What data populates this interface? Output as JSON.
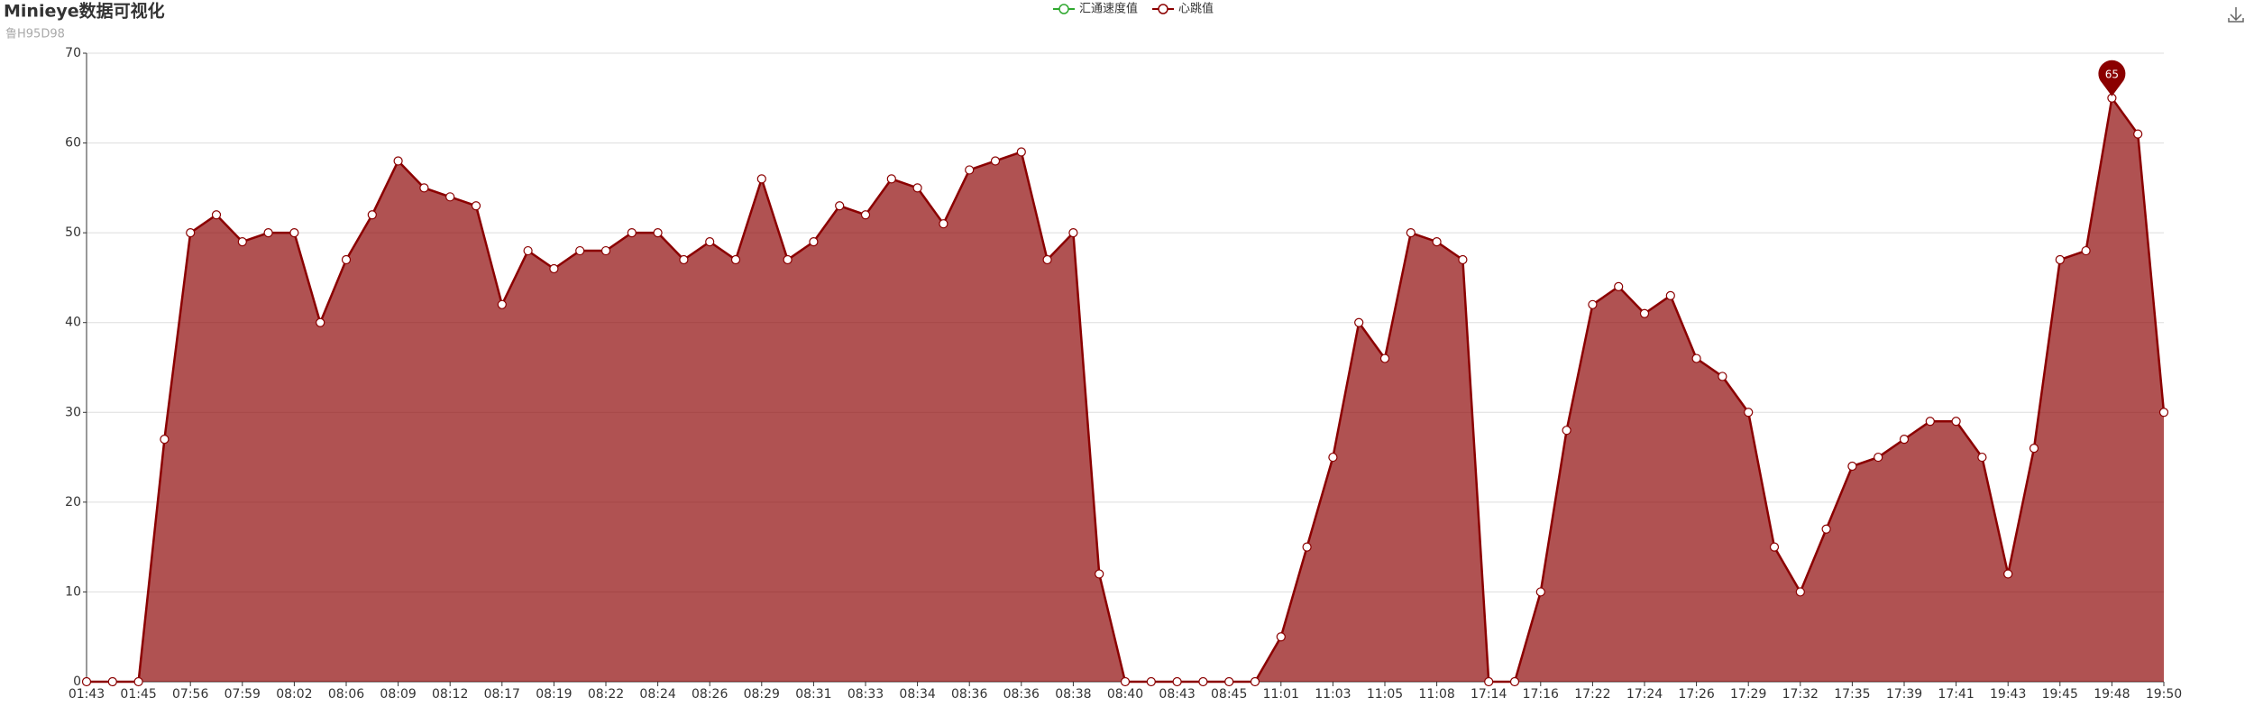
{
  "chart_data": {
    "type": "line",
    "title": "Minieye数据可视化",
    "subtitle": "鲁H95D98",
    "legend": [
      {
        "name": "汇通速度值",
        "color": "#2fa82f"
      },
      {
        "name": "心跳值",
        "color": "#8b0000"
      }
    ],
    "categories": [
      "01:43",
      null,
      "01:45",
      null,
      "07:56",
      null,
      "07:59",
      null,
      "08:02",
      null,
      "08:06",
      null,
      "08:09",
      null,
      "08:12",
      null,
      "08:17",
      null,
      "08:19",
      null,
      "08:22",
      null,
      "08:24",
      null,
      "08:26",
      null,
      "08:29",
      null,
      "08:31",
      null,
      "08:33",
      null,
      "08:34",
      null,
      "08:36",
      null,
      "08:36",
      null,
      "08:38",
      null,
      "08:40",
      null,
      "08:43",
      null,
      "08:45",
      null,
      "11:01",
      null,
      "11:03",
      null,
      "11:05",
      null,
      "11:08",
      null,
      "17:14",
      null,
      "17:16",
      null,
      "17:22",
      null,
      "17:24",
      null,
      "17:26",
      null,
      "17:29",
      null,
      "17:32",
      null,
      "17:35",
      null,
      "17:39",
      null,
      "17:41",
      null,
      "19:43",
      null,
      "19:45",
      null,
      "19:48",
      null,
      "19:50"
    ],
    "series": [
      {
        "name": "心跳值",
        "color": "#8b0000",
        "values": [
          0,
          0,
          0,
          27,
          50,
          52,
          49,
          50,
          50,
          40,
          47,
          52,
          58,
          55,
          54,
          53,
          42,
          48,
          46,
          48,
          48,
          50,
          50,
          47,
          49,
          47,
          56,
          47,
          49,
          53,
          52,
          56,
          55,
          51,
          57,
          58,
          59,
          47,
          50,
          12,
          0,
          0,
          0,
          0,
          0,
          0,
          5,
          15,
          25,
          40,
          36,
          50,
          49,
          47,
          0,
          0,
          10,
          28,
          42,
          44,
          41,
          43,
          36,
          34,
          30,
          15,
          10,
          17,
          24,
          25,
          27,
          29,
          29,
          25,
          12,
          26,
          47,
          48,
          65,
          61,
          30
        ]
      }
    ],
    "ylim": [
      0,
      70
    ],
    "yticks": [
      0,
      10,
      20,
      30,
      40,
      50,
      60,
      70
    ],
    "grid": true,
    "area": true,
    "max_marker": true
  }
}
